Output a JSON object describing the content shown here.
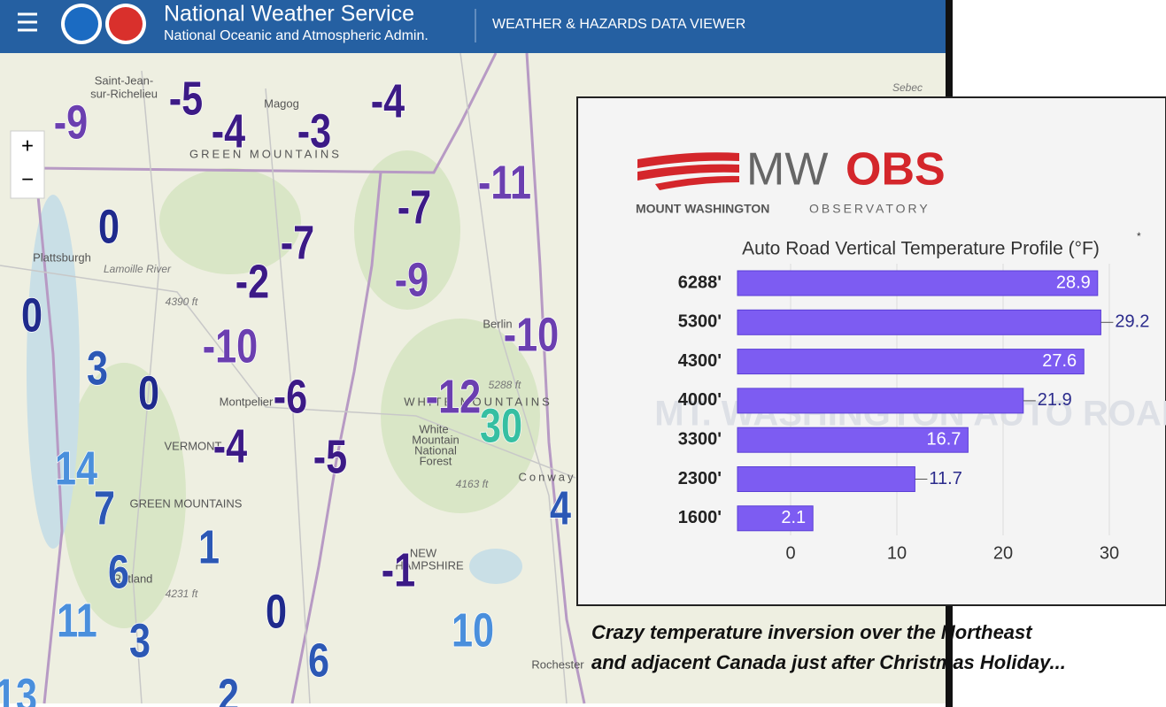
{
  "header": {
    "title": "National Weather Service",
    "subtitle": "National Oceanic and Atmospheric Admin.",
    "app_name": "WEATHER & HAZARDS DATA VIEWER"
  },
  "map": {
    "zoom_in": "+",
    "zoom_out": "−",
    "places": [
      "Saint-Jean-",
      "sur-Richelieu",
      "Magog",
      "Sebec",
      "GREEN MOUNTAINS",
      "Plattsburgh",
      "Lamoille River",
      "4390 ft",
      "Berlin",
      "5288 ft",
      "Montpelier",
      "WHITE MOUNTAINS",
      "VERMONT",
      "White",
      "Mountain",
      "National",
      "Forest",
      "4163 ft",
      "Conway",
      "GREEN MOUNTAINS",
      "Rutland",
      "4231 ft",
      "NEW",
      "HAMPSHIRE",
      "Rochester"
    ],
    "temperatures": [
      -9,
      -5,
      -4,
      -3,
      -4,
      -11,
      -7,
      -7,
      0,
      -2,
      -9,
      0,
      -10,
      -10,
      3,
      0,
      -6,
      -12,
      30,
      -4,
      -5,
      14,
      7,
      4,
      1,
      6,
      -1,
      11,
      0,
      3,
      10,
      6,
      2,
      13
    ]
  },
  "logo": {
    "mark": "MW",
    "emphasis": "OBS",
    "name": "MOUNT WASHINGTON",
    "suffix": "OBSERVATORY"
  },
  "chart_data": {
    "type": "bar",
    "orientation": "horizontal",
    "title": "Auto Road Vertical Temperature Profile (°F)",
    "title_note": "*",
    "categories": [
      "6288'",
      "5300'",
      "4300'",
      "4000'",
      "3300'",
      "2300'",
      "1600'"
    ],
    "values": [
      28.9,
      29.2,
      27.6,
      21.9,
      16.7,
      11.7,
      2.1
    ],
    "color": "#7d5cf2",
    "xlim": [
      -5,
      33
    ],
    "xticks": [
      0,
      10,
      20,
      30
    ],
    "grid": true,
    "watermark": "MT. WASHINGTON AUTO ROAD"
  },
  "caption": [
    "Crazy temperature inversion over the Northeast",
    "and adjacent Canada just after Christmas Holiday..."
  ]
}
